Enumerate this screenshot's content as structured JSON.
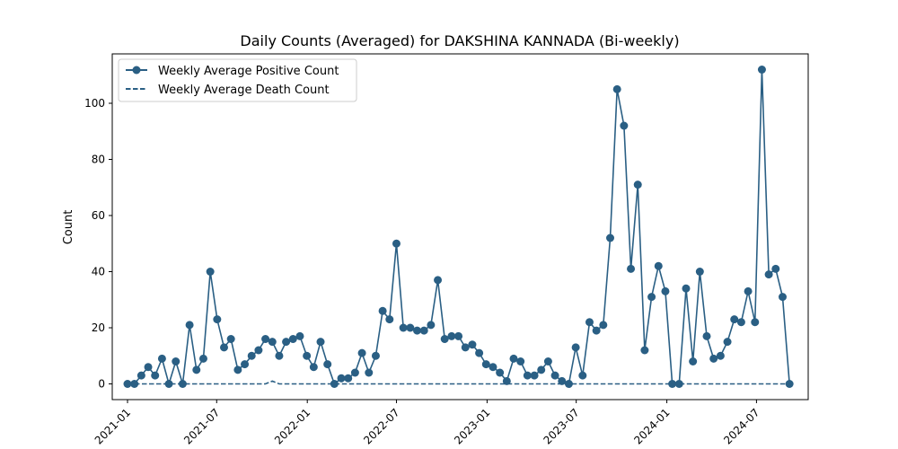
{
  "chart_data": {
    "type": "line",
    "title": "Daily Counts (Averaged) for DAKSHINA KANNADA (Bi-weekly)",
    "xlabel": "",
    "ylabel": "Count",
    "x_type": "date",
    "xlim": [
      "2020-12-01",
      "2024-10-14"
    ],
    "ylim": [
      -5.6,
      117.6
    ],
    "x_ticks": [
      "2021-01",
      "2021-07",
      "2022-01",
      "2022-07",
      "2023-01",
      "2023-07",
      "2024-01",
      "2024-07"
    ],
    "x_tick_dates": [
      "2021-01-01",
      "2021-07-01",
      "2022-01-01",
      "2022-07-01",
      "2023-01-01",
      "2023-07-01",
      "2024-01-01",
      "2024-07-01"
    ],
    "y_ticks": [
      0,
      20,
      40,
      60,
      80,
      100
    ],
    "grid": false,
    "legend_position": "upper left",
    "colors": {
      "series": "#2a5f84",
      "axes": "#000000",
      "background": "#ffffff"
    },
    "x": [
      "2021-01-01",
      "2021-01-15",
      "2021-01-29",
      "2021-02-12",
      "2021-02-26",
      "2021-03-12",
      "2021-03-26",
      "2021-04-09",
      "2021-04-23",
      "2021-05-07",
      "2021-05-21",
      "2021-06-04",
      "2021-06-18",
      "2021-07-02",
      "2021-07-16",
      "2021-07-30",
      "2021-08-13",
      "2021-08-27",
      "2021-09-10",
      "2021-09-24",
      "2021-10-08",
      "2021-10-22",
      "2021-11-05",
      "2021-11-19",
      "2021-12-03",
      "2021-12-17",
      "2021-12-31",
      "2022-01-14",
      "2022-01-28",
      "2022-02-11",
      "2022-02-25",
      "2022-03-11",
      "2022-03-25",
      "2022-04-08",
      "2022-04-22",
      "2022-05-06",
      "2022-05-20",
      "2022-06-03",
      "2022-06-17",
      "2022-07-01",
      "2022-07-15",
      "2022-07-29",
      "2022-08-12",
      "2022-08-26",
      "2022-09-09",
      "2022-09-23",
      "2022-10-07",
      "2022-10-21",
      "2022-11-04",
      "2022-11-18",
      "2022-12-02",
      "2022-12-16",
      "2022-12-30",
      "2023-01-13",
      "2023-01-27",
      "2023-02-10",
      "2023-02-24",
      "2023-03-10",
      "2023-03-24",
      "2023-04-07",
      "2023-04-21",
      "2023-05-05",
      "2023-05-19",
      "2023-06-02",
      "2023-06-16",
      "2023-06-30",
      "2023-07-14",
      "2023-07-28",
      "2023-08-11",
      "2023-08-25",
      "2023-09-08",
      "2023-09-22",
      "2023-10-06",
      "2023-10-20",
      "2023-11-03",
      "2023-11-17",
      "2023-12-01",
      "2023-12-15",
      "2023-12-29",
      "2024-01-12",
      "2024-01-26",
      "2024-02-09",
      "2024-02-23",
      "2024-03-08",
      "2024-03-22",
      "2024-04-05",
      "2024-04-19",
      "2024-05-03",
      "2024-05-17",
      "2024-05-31",
      "2024-06-14",
      "2024-06-28",
      "2024-07-12",
      "2024-07-26",
      "2024-08-09",
      "2024-08-23",
      "2024-09-06"
    ],
    "series": [
      {
        "name": "Weekly Average Positive Count",
        "style": "solid-with-markers",
        "values": [
          0,
          0,
          3,
          6,
          3,
          9,
          0,
          8,
          0,
          21,
          5,
          9,
          40,
          23,
          13,
          16,
          5,
          7,
          10,
          12,
          16,
          15,
          10,
          15,
          16,
          17,
          10,
          6,
          15,
          7,
          0,
          2,
          2,
          4,
          11,
          4,
          10,
          26,
          23,
          50,
          20,
          20,
          19,
          19,
          21,
          37,
          16,
          17,
          17,
          13,
          14,
          11,
          7,
          6,
          4,
          1,
          9,
          8,
          3,
          3,
          5,
          8,
          3,
          1,
          0,
          13,
          3,
          22,
          19,
          21,
          52,
          105,
          92,
          41,
          71,
          12,
          31,
          42,
          33,
          0,
          0,
          34,
          8,
          40,
          17,
          9,
          10,
          15,
          23,
          22,
          33,
          22,
          112,
          39,
          41,
          31,
          0
        ]
      },
      {
        "name": "Weekly Average Death Count",
        "style": "dashed",
        "values": [
          0,
          0,
          0,
          0,
          0,
          0,
          0,
          0,
          0,
          0,
          0,
          0,
          0,
          0,
          0,
          0,
          0,
          0,
          0,
          0,
          0,
          1,
          0,
          0,
          0,
          0,
          0,
          0,
          0,
          0,
          0,
          0,
          0,
          0,
          0,
          0,
          0,
          0,
          0,
          0,
          0,
          0,
          0,
          0,
          0,
          0,
          0,
          0,
          0,
          0,
          0,
          0,
          0,
          0,
          0,
          0,
          0,
          0,
          0,
          0,
          0,
          0,
          0,
          0,
          0,
          0,
          0,
          0,
          0,
          0,
          0,
          0,
          0,
          0,
          0,
          0,
          0,
          0,
          0,
          0,
          0,
          0,
          0,
          0,
          0,
          0,
          0,
          0,
          0,
          0,
          0,
          0,
          0,
          0,
          0,
          0,
          0
        ]
      }
    ]
  }
}
